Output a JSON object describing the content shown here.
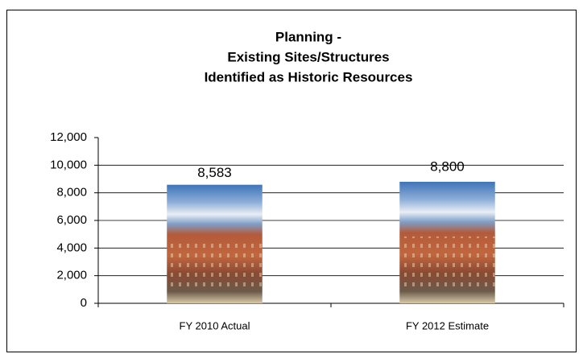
{
  "chart_data": {
    "type": "bar",
    "title": [
      "Planning -",
      "Existing Sites/Structures",
      "Identified as Historic Resources"
    ],
    "categories": [
      "FY 2010 Actual",
      "FY 2012 Estimate"
    ],
    "values": [
      8583,
      8800
    ],
    "value_labels": [
      "8,583",
      "8,800"
    ],
    "ylim": [
      0,
      12000
    ],
    "yticks": [
      {
        "value": 0,
        "label": "0"
      },
      {
        "value": 2000,
        "label": "2,000"
      },
      {
        "value": 4000,
        "label": "4,000"
      },
      {
        "value": 6000,
        "label": "6,000"
      },
      {
        "value": 8000,
        "label": "8,000"
      },
      {
        "value": 10000,
        "label": "10,000"
      },
      {
        "value": 12000,
        "label": "12,000"
      }
    ],
    "grid": true
  }
}
